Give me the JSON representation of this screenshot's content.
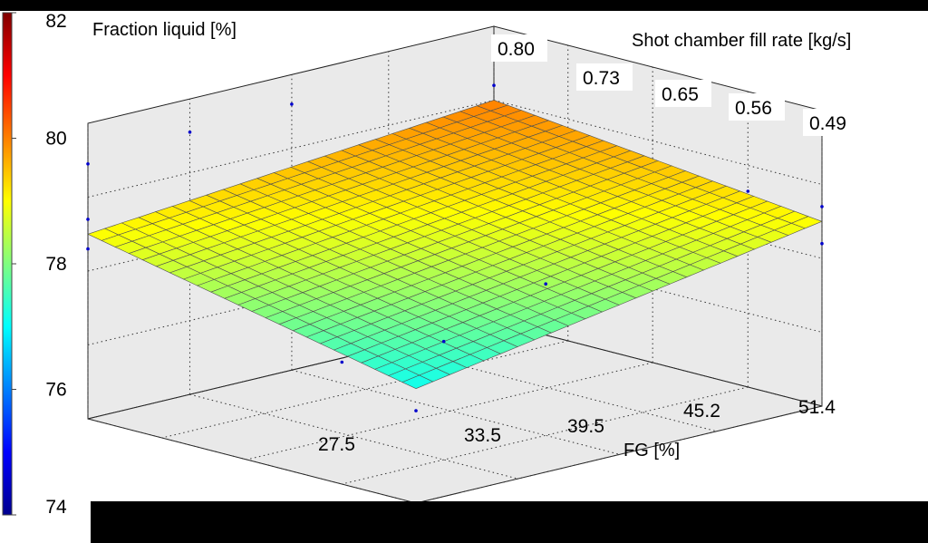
{
  "chart_data": {
    "type": "surface",
    "title": "",
    "z_label": "Fraction liquid [%]",
    "y_label": "Shot chamber fill rate [kg/s]",
    "x_label": "FG [%]",
    "x_ticks": [
      "27.5",
      "33.5",
      "39.5",
      "45.2",
      "51.4"
    ],
    "y_ticks": [
      "0.80",
      "0.73",
      "0.65",
      "0.56",
      "0.49"
    ],
    "colorbar": {
      "ticks": [
        "82",
        "80",
        "78",
        "76",
        "74"
      ],
      "range": [
        74,
        82
      ],
      "colormap": "jet"
    },
    "grid": true,
    "surface": {
      "x_range": [
        27.5,
        51.4
      ],
      "y_range": [
        0.49,
        0.8
      ],
      "corners": {
        "x27.5_y0.80": 79.0,
        "x51.4_y0.80": 80.0,
        "x51.4_y0.49": 79.0,
        "x27.5_y0.49": 77.1
      },
      "mesh_divisions": 24
    },
    "colors": {
      "background": "#000000",
      "panel": "#ffffff",
      "axes_fill": "#ededed",
      "mesh_line": "#505050",
      "point_color": "#0000cc"
    }
  }
}
